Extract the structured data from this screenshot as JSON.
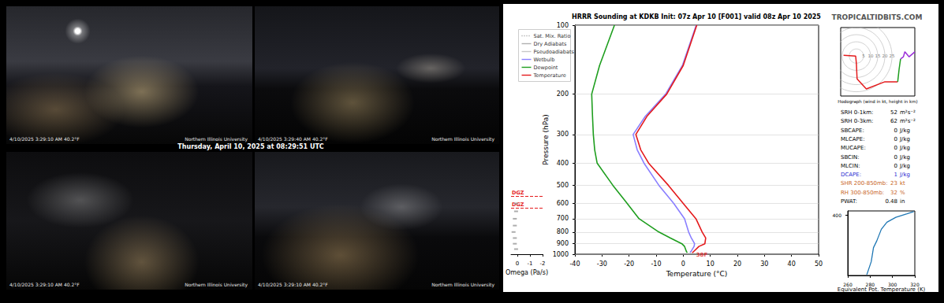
{
  "webcams": {
    "date_banner": "Thursday, April 10, 2025 at 08:29:51 UTC",
    "panels": [
      {
        "timestamp": "4/10/2025 3:29:10 AM 40.2°F",
        "logo": "Northern Illinois University"
      },
      {
        "timestamp": "4/10/2025 3:29:40 AM 40.2°F",
        "logo": "Northern Illinois University"
      },
      {
        "timestamp": "4/10/2025 3:29:10 AM 40.2°F",
        "logo": "Northern Illinois University"
      },
      {
        "timestamp": "4/10/2025 3:29:10 AM 40.2°F",
        "logo": "Northern Illinois University"
      }
    ]
  },
  "site": "TROPICALTIDBITS.COM",
  "chart_data": [
    {
      "type": "line",
      "title": "HRRR Sounding at KDKB Init: 07z Apr 10 [F001] valid 08z Apr 10 2025",
      "x_label": "Temperature (°C)",
      "y_label": "Pressure (hPa)",
      "xlim": [
        -40,
        50
      ],
      "xticks": [
        -40,
        -30,
        -20,
        -10,
        0,
        10,
        20,
        30,
        40,
        50
      ],
      "ylim": [
        1000,
        100
      ],
      "yticks": [
        100,
        200,
        300,
        400,
        500,
        600,
        700,
        800,
        900,
        1000
      ],
      "log": "y",
      "grid": true,
      "legend": "upper left",
      "reference_lines": [
        {
          "name": "Sat. Mix. Ratio",
          "color": "#999999",
          "line_style": "dotted"
        },
        {
          "name": "Dry Adiabats",
          "color": "#b0b0b0",
          "line_style": "solid"
        },
        {
          "name": "Pseudoadiabats",
          "color": "#c8c8c8",
          "line_style": "solid"
        }
      ],
      "series": [
        {
          "name": "Wetbulb",
          "color": "#8a7fff",
          "x": [
            2.5,
            2.8,
            4.0,
            4.2,
            3.0,
            2.0,
            0.5,
            -3.5,
            -9.0,
            -14.5,
            -17.0,
            -18.5,
            -14.0,
            -6.5,
            -0.3,
            4.8
          ],
          "y": [
            985,
            975,
            925,
            900,
            850,
            800,
            700,
            600,
            500,
            400,
            350,
            300,
            250,
            200,
            150,
            100
          ]
        },
        {
          "name": "Dewpoint",
          "color": "#1e9e1e",
          "x": [
            1.5,
            1.2,
            0.5,
            -0.5,
            -4.7,
            -9.0,
            -16.3,
            -20.7,
            -26.0,
            -31.8,
            -32.7,
            -33.2,
            -33.5,
            -33.8,
            -30.9,
            -25.4
          ],
          "y": [
            985,
            975,
            925,
            900,
            850,
            800,
            700,
            600,
            500,
            400,
            350,
            300,
            250,
            200,
            150,
            100
          ]
        },
        {
          "name": "Temperature",
          "color": "#e41a1c",
          "x": [
            3.3,
            3.8,
            5.8,
            8.0,
            8.3,
            7.0,
            4.7,
            0,
            -5.5,
            -12.8,
            -15.7,
            -17.5,
            -13.4,
            -6.1,
            0,
            5.0
          ],
          "y": [
            985,
            975,
            925,
            900,
            850,
            800,
            700,
            600,
            500,
            400,
            350,
            300,
            250,
            200,
            150,
            100
          ]
        }
      ],
      "annotations": [
        {
          "text": "38F",
          "series": "Temperature"
        }
      ]
    },
    {
      "type": "scatter",
      "x_label": "Omega (Pa/s)",
      "xlim": [
        0.5,
        -2
      ],
      "xticks": [
        0,
        -1,
        -2
      ],
      "ylim": [
        1000,
        100
      ],
      "log": "y",
      "tick_labels": "x",
      "marker": "square",
      "color": "#999999",
      "x": [
        0.1,
        0.2,
        0.2,
        0.3,
        0.2,
        0.2,
        0.1,
        0.1
      ],
      "y": [
        950,
        900,
        850,
        800,
        750,
        700,
        650,
        600
      ],
      "dgz": {
        "label": "DGZ",
        "values": [
          560,
          630
        ],
        "color": "#e41a1c"
      }
    },
    {
      "type": "line",
      "title": "Hodograph (wind in kt, height in km)",
      "xlim": [
        -11,
        41
      ],
      "ylim": [
        -28,
        20
      ],
      "tick_labels": false,
      "rings": [
        5,
        10,
        15,
        20,
        25
      ],
      "series": [
        {
          "color": "#e41a1c",
          "x": [
            -9,
            -0.5,
            0,
            0.5,
            7,
            20,
            29
          ],
          "y": [
            0.5,
            0,
            -5,
            -16,
            -23,
            -18,
            -18
          ]
        },
        {
          "color": "#1e9e1e",
          "x": [
            29,
            30,
            31
          ],
          "y": [
            -18,
            -9,
            -2
          ]
        },
        {
          "color": "#9b30d9",
          "x": [
            31,
            33,
            34,
            37,
            41
          ],
          "y": [
            -2,
            -0.5,
            3,
            -0.5,
            3
          ]
        }
      ]
    },
    {
      "type": "line",
      "x_label": "Equivalent Pot. Temperature (K)",
      "xlim": [
        260,
        320
      ],
      "xticks": [
        260,
        280,
        300,
        320
      ],
      "ylim": [
        1000,
        375
      ],
      "yticks": [
        400
      ],
      "log": "y",
      "series": [
        {
          "color": "#1f77b4",
          "x": [
            277,
            281,
            283,
            286,
            290,
            295,
            303,
            313,
            319
          ],
          "y": [
            990,
            810,
            655,
            590,
            496,
            445,
            413,
            392,
            379
          ]
        }
      ]
    }
  ],
  "parameters": [
    {
      "label": "SRH 0-1km:",
      "value": 52,
      "unit": "m²s⁻²"
    },
    {
      "label": "SRH 0-3km:",
      "value": 62,
      "unit": "m²s⁻²"
    },
    {
      "label": "SBCAPE:",
      "value": 0,
      "unit": "J/kg"
    },
    {
      "label": "MLCAPE:",
      "value": 0,
      "unit": "J/kg"
    },
    {
      "label": "MUCAPE:",
      "value": 0,
      "unit": "J/kg"
    },
    {
      "label": "SBCIN:",
      "value": 0,
      "unit": "J/kg"
    },
    {
      "label": "MLCIN:",
      "value": 0,
      "unit": "J/kg"
    },
    {
      "label": "DCAPE:",
      "value": 1,
      "unit": "J/kg",
      "color": "#2b2bd1"
    },
    {
      "label": "SHR 200-850mb:",
      "value": 23,
      "unit": "kt",
      "color": "#c8641e"
    },
    {
      "label": "RH 300-850mb:",
      "value": 32,
      "unit": "%",
      "color": "#c8641e"
    },
    {
      "label": "PWAT:",
      "value": 0.48,
      "unit": "in"
    }
  ]
}
